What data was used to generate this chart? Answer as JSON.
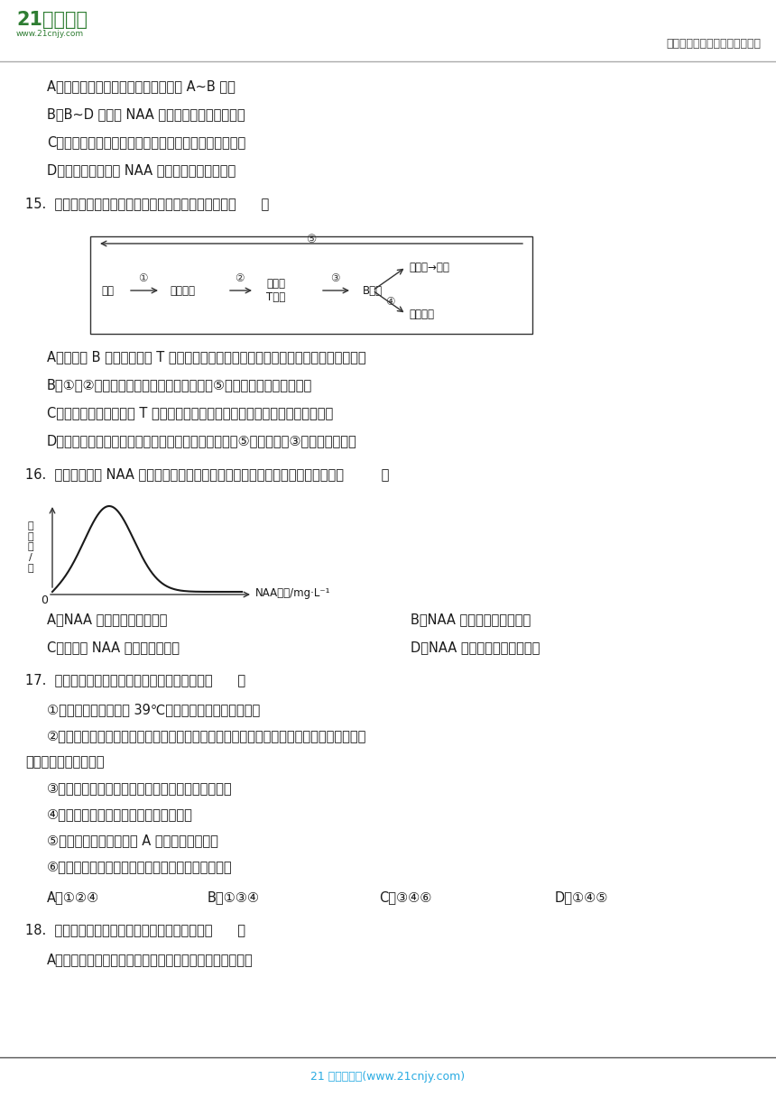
{
  "bg_color": "#ffffff",
  "header_right": "中小学教育资源及组卷应用平台",
  "footer_text": "21 世纪教育网(www.21cnjy.com)",
  "footer_color": "#29abe2",
  "opt1": "A．促进迎春花插条生根的浓度范围是 A~B 浓度",
  "opt2": "B．B~D 浓度的 NAA 溶液抑制迎春花插条生根",
  "opt3": "C．研究人员在该实验过程中设置了空白对照和相互对照",
  "opt4": "D．该曲线不能说明 NAA 的生理作用具有两重性",
  "q15": "15.  下图为人体特异性免疫示意图，有关叙述正确的是（      ）",
  "q15a": "A．图中的 B 细胞和辅助性 T 细胞都由骨髓造血干细胞分化而成，并在骨髓中发育成熟",
  "q15b": "B．①和②过程都需要细胞膜上糖被的参与，⑤过程主要发生在内环境中",
  "q15c": "C．该免疫过程有辅助性 T 细胞等多种免疫细胞的参与，因此属于细胞免疫过程",
  "q15d": "D．机体再次受到同种抗原刺激时，可在短时间内发生⑤反应，因为③过程可迅速完成",
  "q16": "16.  生长素类似物 NAA 对某植物插条生根的影响如下图所示，以下叙述正确的是（         ）",
  "q16a": "A．NAA 浓度与生根数成正比",
  "q16b": "B．NAA 浓度与生根数成反比",
  "q16c": "C．不使用 NAA 该植物不能生根",
  "q16d": "D．NAA 浓度过高时会抑制生根",
  "q17": "17.  下列关于动物激素及其调节的叙述正确的是（      ）",
  "q17_1": "①某同学感冒持续高热 39℃，其体内产热量等于散热量",
  "q17_2": "②人在恐惧、紧张时，肾上腺素分泌增多，通过神经纤维运输到心脏，使心率加快，肾上腺",
  "q17_2b": "素在发挥作用后被灭活",
  "q17_3": "③下丘脑功能受损的幼犬会出现抗寒能力减弱等现象",
  "q17_4": "④正常人体内，激素的分泌存在反馈调节",
  "q17_5": "⑤血糖浓度升高能使胰岛 A 细胞分泌活动增强",
  "q17_6": "⑥胰高血糖素分泌量上升，促进肝糖原和肌糖原分解",
  "q17a": "A．①②④",
  "q17b": "B．①③④",
  "q17c": "C．③④⑥",
  "q17d": "D．①④⑤",
  "q18": "18.  下列与人体免疫调节有关的说法，正确的是（      ）",
  "q18a": "A．第一道防线不具有特异性，第二、三道防线具有特异性"
}
